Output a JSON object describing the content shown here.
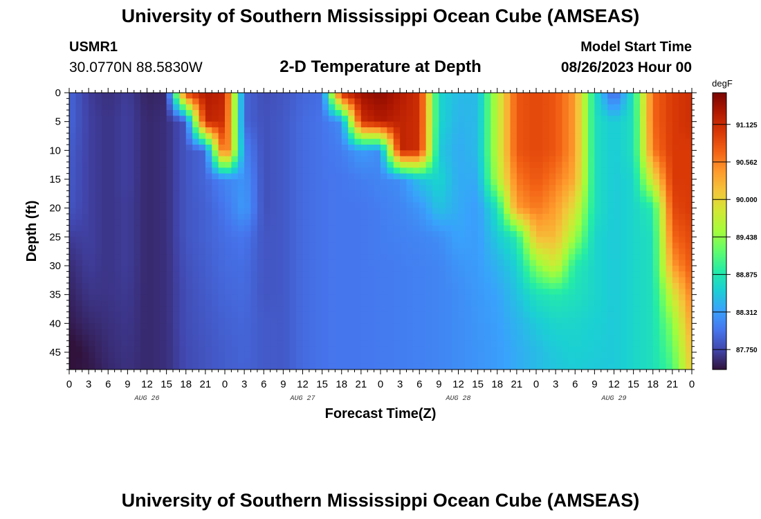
{
  "header": {
    "title": "University of Southern Mississippi Ocean Cube (AMSEAS)",
    "station": "USMR1",
    "coordinates": "30.0770N  88.5830W",
    "subtitle": "2-D Temperature at Depth",
    "model_start_label": "Model Start Time",
    "model_start_value": "08/26/2023 Hour 00"
  },
  "footer": {
    "title": "University of Southern Mississippi Ocean Cube (AMSEAS)"
  },
  "chart_data": {
    "type": "heatmap",
    "title": "2-D Temperature at Depth",
    "xlabel": "Forecast Time(Z)",
    "ylabel": "Depth (ft)",
    "x_range_hours": [
      0,
      96
    ],
    "x_tick_labels": [
      "0",
      "3",
      "6",
      "9",
      "12",
      "15",
      "18",
      "21",
      "0",
      "3",
      "6",
      "9",
      "12",
      "15",
      "18",
      "21",
      "0",
      "3",
      "6",
      "9",
      "12",
      "15",
      "18",
      "21",
      "0",
      "3",
      "6",
      "9",
      "12",
      "15",
      "18",
      "21",
      "0"
    ],
    "day_labels": [
      {
        "label": "AUG 26",
        "hour": 12
      },
      {
        "label": "AUG 27",
        "hour": 36
      },
      {
        "label": "AUG 28",
        "hour": 60
      },
      {
        "label": "AUG 29",
        "hour": 84
      }
    ],
    "y_range_ft": [
      0,
      48
    ],
    "y_ticks": [
      0,
      5,
      10,
      15,
      20,
      25,
      30,
      35,
      40,
      45
    ],
    "colorbar": {
      "unit": "degF",
      "range": [
        87.45,
        91.6
      ],
      "ticks": [
        87.75,
        88.312,
        88.875,
        89.438,
        90.0,
        90.562,
        91.125
      ],
      "tick_labels": [
        "87.750",
        "88.312",
        "88.875",
        "89.438",
        "90.000",
        "90.562",
        "91.125"
      ],
      "colors": [
        "#30123b",
        "#4145ab",
        "#4675ed",
        "#39a2fc",
        "#1bcfd4",
        "#24eca6",
        "#61fc6c",
        "#a4fc3b",
        "#d1e834",
        "#f3c63a",
        "#fe9b2d",
        "#f36315",
        "#d93806",
        "#b11901",
        "#7a0402"
      ]
    },
    "hour_columns": [
      0,
      3,
      6,
      9,
      12,
      15,
      18,
      21,
      24,
      27,
      30,
      33,
      36,
      39,
      42,
      45,
      48,
      51,
      54,
      57,
      60,
      63,
      66,
      69,
      72,
      75,
      78,
      81,
      84,
      87,
      90,
      93,
      96
    ],
    "depth_rows_ft": [
      0,
      5,
      10,
      15,
      20,
      25,
      30,
      35,
      40,
      45,
      48
    ],
    "temperature_degF": [
      [
        87.95,
        87.7,
        87.62,
        87.7,
        87.55,
        87.58,
        91.0,
        91.3,
        91.2,
        87.95,
        87.8,
        87.85,
        87.95,
        88.0,
        91.2,
        91.4,
        91.5,
        91.3,
        91.1,
        88.7,
        88.5,
        88.5,
        89.7,
        90.8,
        90.9,
        90.8,
        90.4,
        88.8,
        87.9,
        88.85,
        90.7,
        91.0,
        91.1
      ],
      [
        87.95,
        87.72,
        87.65,
        87.72,
        87.58,
        87.62,
        87.85,
        91.2,
        91.1,
        87.95,
        87.82,
        87.87,
        87.98,
        88.03,
        88.2,
        91.1,
        91.3,
        91.2,
        91.1,
        88.7,
        88.45,
        88.5,
        89.7,
        90.8,
        90.9,
        90.8,
        90.4,
        88.8,
        88.6,
        88.8,
        90.7,
        91.0,
        91.1
      ],
      [
        87.9,
        87.72,
        87.65,
        87.72,
        87.58,
        87.62,
        87.85,
        87.95,
        91.0,
        88.15,
        87.82,
        87.87,
        87.98,
        88.03,
        88.1,
        88.3,
        88.2,
        91.2,
        91.1,
        88.6,
        88.4,
        88.5,
        89.7,
        90.8,
        90.9,
        90.8,
        90.4,
        88.8,
        88.6,
        88.8,
        90.6,
        91.0,
        91.0
      ],
      [
        87.88,
        87.72,
        87.65,
        87.72,
        87.58,
        87.62,
        87.85,
        87.95,
        88.15,
        88.25,
        87.82,
        87.87,
        87.98,
        88.03,
        88.05,
        88.1,
        88.15,
        88.2,
        88.55,
        88.7,
        88.4,
        88.4,
        89.6,
        90.6,
        90.8,
        90.6,
        90.3,
        88.8,
        88.6,
        88.7,
        89.9,
        91.0,
        91.0
      ],
      [
        87.85,
        87.72,
        87.65,
        87.7,
        87.58,
        87.62,
        87.85,
        87.92,
        88.05,
        88.3,
        87.82,
        87.87,
        87.98,
        88.03,
        88.05,
        88.05,
        88.1,
        88.15,
        88.25,
        88.55,
        88.4,
        88.3,
        88.8,
        90.4,
        90.6,
        90.4,
        89.9,
        88.8,
        88.6,
        88.7,
        88.9,
        90.9,
        91.0
      ],
      [
        87.7,
        87.72,
        87.65,
        87.7,
        87.58,
        87.62,
        87.85,
        87.92,
        88.0,
        88.05,
        87.85,
        87.87,
        87.98,
        88.03,
        88.05,
        88.05,
        88.1,
        88.12,
        88.15,
        88.2,
        88.35,
        88.3,
        88.6,
        88.9,
        90.2,
        90.2,
        89.5,
        88.7,
        88.6,
        88.7,
        88.8,
        90.7,
        90.9
      ],
      [
        87.6,
        87.7,
        87.65,
        87.7,
        87.58,
        87.62,
        87.82,
        87.9,
        87.98,
        88.0,
        87.85,
        87.87,
        87.98,
        88.03,
        88.05,
        88.05,
        88.08,
        88.1,
        88.12,
        88.15,
        88.25,
        88.3,
        88.45,
        88.65,
        89.4,
        89.8,
        88.9,
        88.7,
        88.6,
        88.7,
        88.8,
        90.4,
        90.8
      ],
      [
        87.55,
        87.65,
        87.65,
        87.68,
        87.58,
        87.62,
        87.8,
        87.88,
        87.95,
        87.98,
        87.85,
        87.87,
        87.98,
        88.03,
        88.05,
        88.05,
        88.08,
        88.1,
        88.12,
        88.15,
        88.2,
        88.28,
        88.35,
        88.55,
        88.8,
        88.9,
        88.8,
        88.7,
        88.6,
        88.7,
        88.8,
        89.8,
        90.6
      ],
      [
        87.5,
        87.58,
        87.62,
        87.66,
        87.58,
        87.62,
        87.8,
        87.86,
        87.92,
        87.95,
        87.88,
        87.87,
        87.98,
        88.03,
        88.05,
        88.05,
        88.08,
        88.1,
        88.12,
        88.15,
        88.2,
        88.26,
        88.32,
        88.45,
        88.6,
        88.7,
        88.7,
        88.65,
        88.6,
        88.7,
        88.8,
        89.4,
        90.4
      ],
      [
        87.4,
        87.5,
        87.6,
        87.64,
        87.58,
        87.62,
        87.78,
        87.84,
        87.9,
        87.94,
        87.88,
        87.87,
        87.98,
        88.03,
        88.05,
        88.05,
        88.08,
        88.1,
        88.12,
        88.15,
        88.2,
        88.25,
        88.3,
        88.4,
        88.5,
        88.6,
        88.65,
        88.62,
        88.6,
        88.7,
        88.8,
        89.2,
        90.2
      ],
      [
        87.45,
        87.48,
        87.58,
        87.63,
        87.58,
        87.62,
        87.78,
        87.84,
        87.9,
        87.93,
        87.88,
        87.87,
        87.98,
        88.03,
        88.05,
        88.05,
        88.08,
        88.1,
        88.12,
        88.15,
        88.2,
        88.25,
        88.3,
        88.4,
        88.5,
        88.58,
        88.62,
        88.6,
        88.6,
        88.7,
        88.8,
        89.1,
        90.1
      ]
    ]
  }
}
